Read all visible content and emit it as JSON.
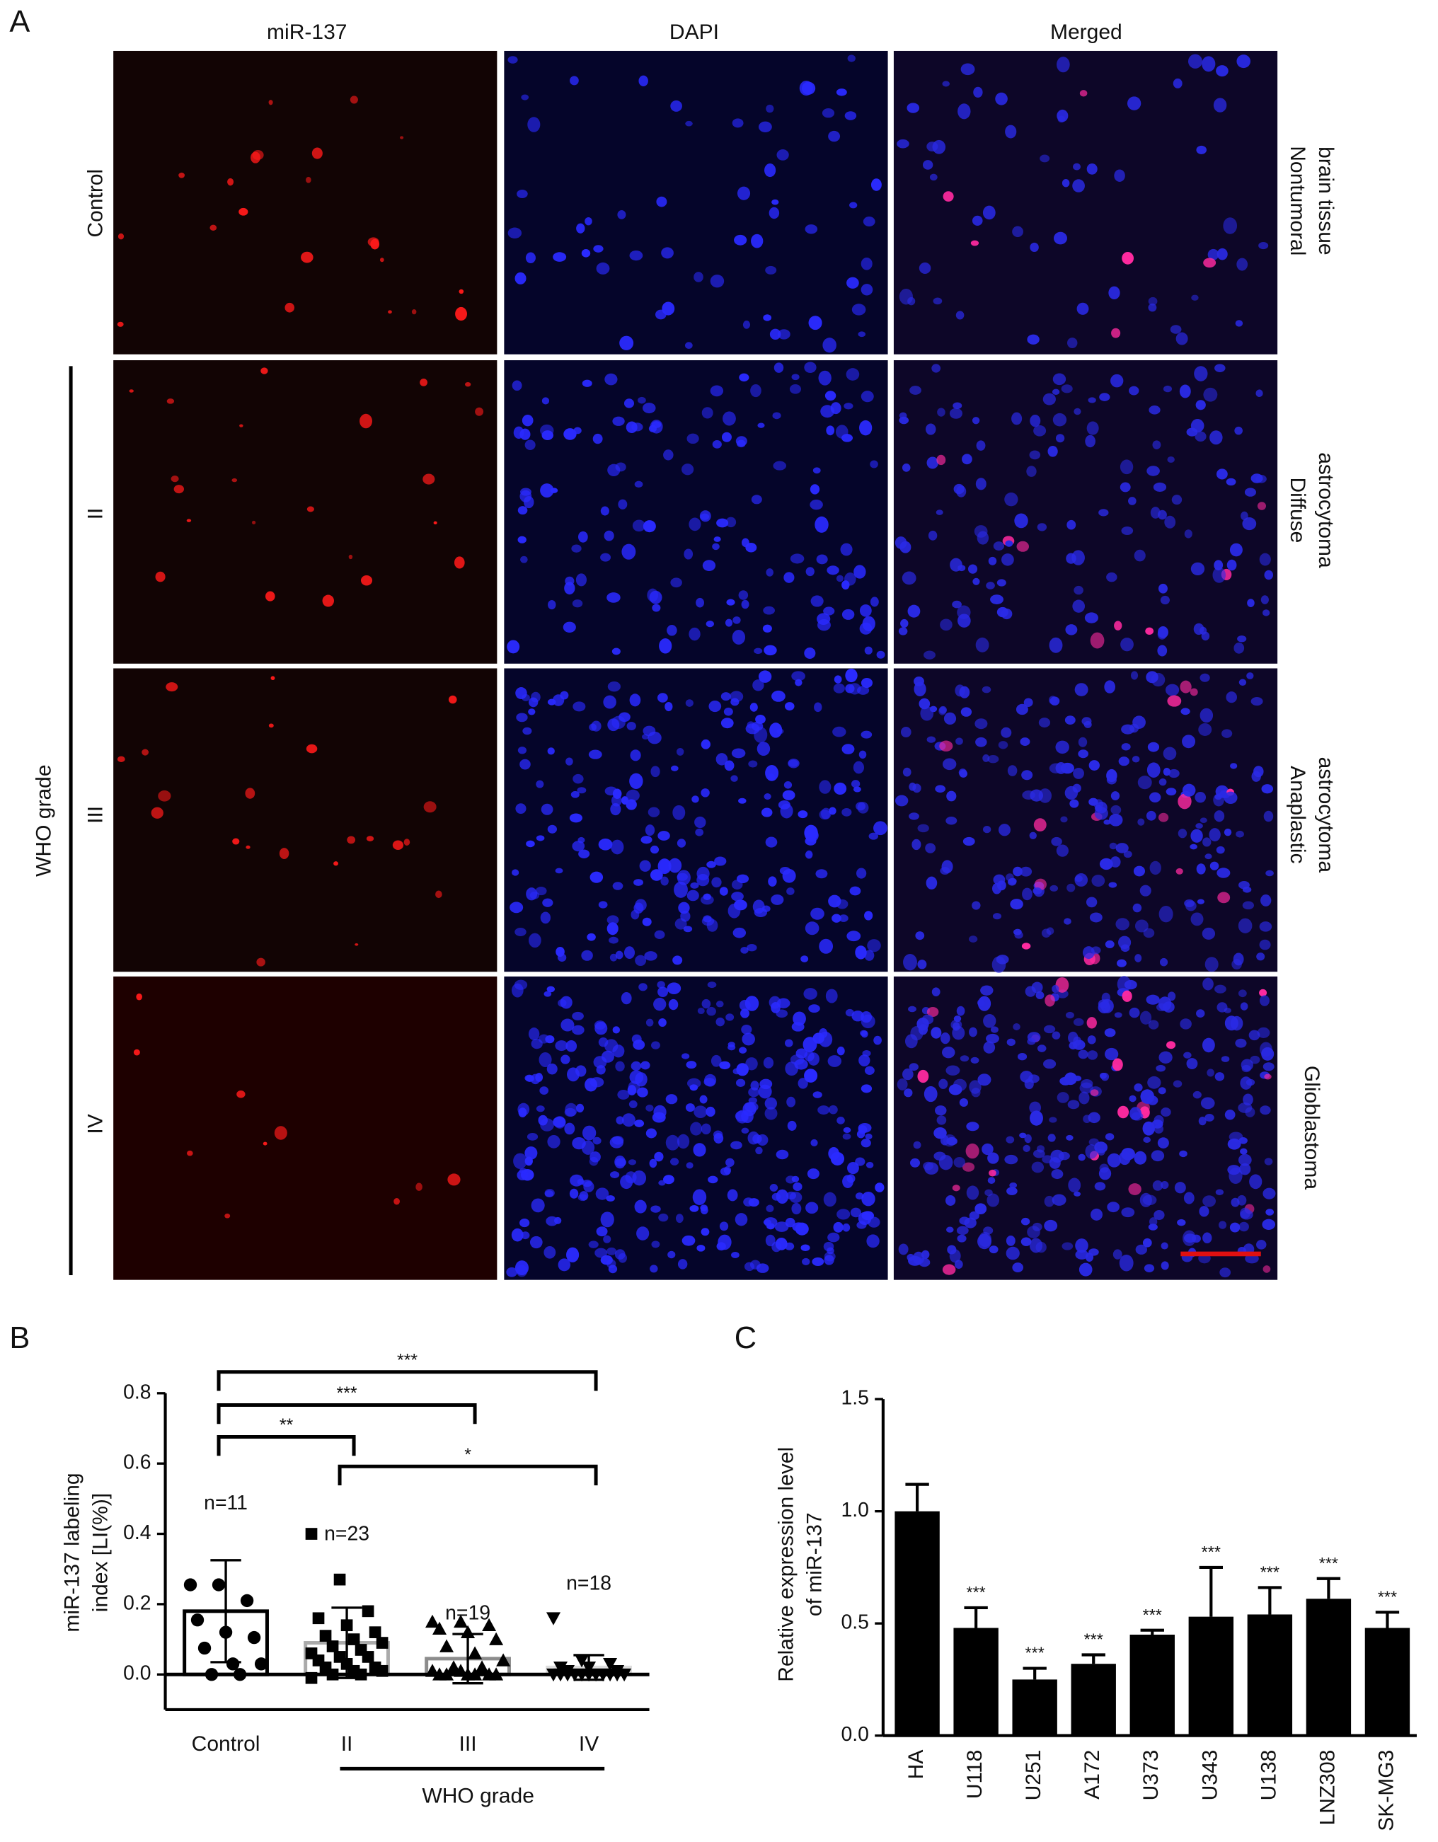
{
  "panel_a": {
    "label": "A",
    "columns": [
      "miR-137",
      "DAPI",
      "Merged"
    ],
    "row_labels_left": [
      "Control",
      "II",
      "III",
      "IV"
    ],
    "group_label": "WHO grade",
    "row_labels_right": [
      [
        "Nontumoral",
        "brain tissue"
      ],
      [
        "Diffuse",
        "astrocytoma"
      ],
      [
        "Anaplastic",
        "astrocytoma"
      ],
      [
        "Glioblastoma"
      ]
    ]
  },
  "chart_data": [
    {
      "type": "bar",
      "label": "B",
      "ylabel": [
        "miR-137 labeling",
        "index [LI(%)]"
      ],
      "categories": [
        "Control",
        "II",
        "III",
        "IV"
      ],
      "values": [
        0.18,
        0.09,
        0.045,
        0.02
      ],
      "errors": [
        0.145,
        0.1,
        0.07,
        0.035
      ],
      "colors": [
        "#000000",
        "#aaaaaa",
        "#8c8c8c",
        "#dddddd"
      ],
      "points": [
        [
          0.255,
          0.255,
          0.21,
          0.155,
          0.12,
          0.105,
          0.075,
          0.03,
          0.03,
          0.0,
          0.0
        ],
        [
          0.4,
          0.27,
          0.18,
          0.16,
          0.14,
          0.12,
          0.11,
          0.1,
          0.09,
          0.08,
          0.07,
          0.06,
          0.05,
          0.05,
          0.04,
          0.03,
          0.02,
          0.02,
          0.01,
          0.01,
          0.0,
          0.0,
          -0.01
        ],
        [
          0.15,
          0.15,
          0.14,
          0.13,
          0.12,
          0.1,
          0.08,
          0.06,
          0.04,
          0.02,
          0.02,
          0.01,
          0.01,
          0.0,
          0.0,
          0.0,
          0.0,
          0.0,
          0.0
        ],
        [
          0.16,
          0.04,
          0.03,
          0.02,
          0.02,
          0.01,
          0.01,
          0.0,
          0.0,
          0.0,
          0.0,
          0.0,
          0.0,
          0.0,
          0.0,
          0.0,
          0.0,
          0.0
        ]
      ],
      "point_markers": [
        "circle",
        "square",
        "triangle",
        "triangle-down"
      ],
      "n_labels": [
        "n=11",
        "n=23",
        "n=19",
        "n=18"
      ],
      "group_label": "WHO grade",
      "significance": [
        "***",
        "***",
        "**",
        "*"
      ],
      "ylim": [
        -0.1,
        0.8
      ],
      "yticks": [
        {
          "value": 0,
          "label": "0.0"
        },
        0.2,
        0.4,
        0.6,
        0.8
      ]
    },
    {
      "type": "bar",
      "label": "C",
      "ylabel": [
        "Relative expression level",
        "of miR-137"
      ],
      "categories": [
        "HA",
        "U118",
        "U251",
        "A172",
        "U373",
        "U343",
        "U138",
        "LNZ308",
        "SK-MG3"
      ],
      "values": [
        1.0,
        0.48,
        0.25,
        0.32,
        0.45,
        0.53,
        0.54,
        0.61,
        0.48
      ],
      "errors": [
        0.12,
        0.09,
        0.05,
        0.04,
        0.02,
        0.22,
        0.12,
        0.09,
        0.07
      ],
      "value_labels": [
        null,
        "***",
        "***",
        "***",
        "***",
        "***",
        "***",
        "***",
        "***"
      ],
      "color": "#000000",
      "ylim": [
        0,
        1.5
      ],
      "yticks": [
        {
          "value": 0,
          "label": "0.0"
        },
        0.5,
        {
          "value": 1,
          "label": "1.0"
        },
        1.5
      ]
    }
  ]
}
